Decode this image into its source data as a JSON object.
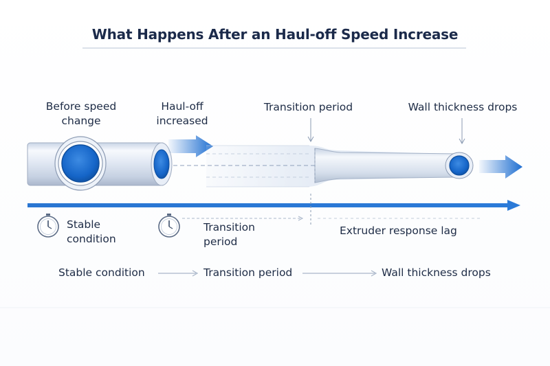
{
  "title": "What Happens After an Haul-off Speed Increase",
  "stages_top": {
    "before_line1": "Before speed",
    "before_line2": "change",
    "hauloff_line1": "Haul-off",
    "hauloff_line2": "increased",
    "transition": "Transition period",
    "wall_drops": "Wall thickness drops"
  },
  "timeline": {
    "stable_line1": "Stable",
    "stable_line2": "condition",
    "transition_line1": "Transition",
    "transition_line2": "period",
    "lag": "Extruder response lag"
  },
  "flow": {
    "step1": "Stable condition",
    "step2": "Transition period",
    "step3": "Wall thickness drops"
  },
  "icons": {
    "clock1": "stopwatch-icon",
    "clock2": "stopwatch-icon"
  },
  "colors": {
    "accent_blue": "#1f6fd1",
    "pipe_core": "#1565c8",
    "pipe_shell": "#dbe4f1",
    "title_text": "#1b2a4a"
  }
}
